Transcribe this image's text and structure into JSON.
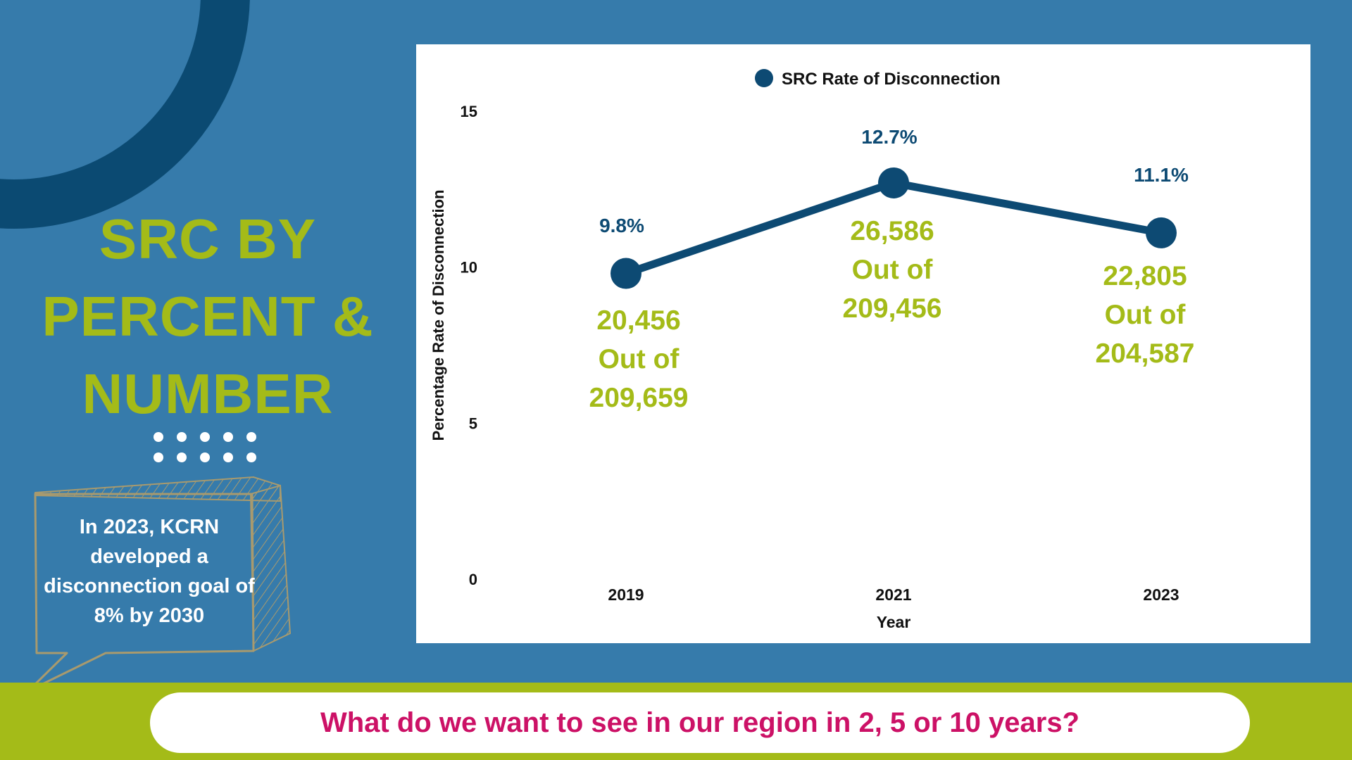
{
  "side": {
    "title_lines": [
      "SRC BY",
      "PERCENT &",
      "NUMBER"
    ],
    "note": "In 2023, KCRN developed a disconnection goal of 8% by 2030"
  },
  "footer": {
    "question": "What do we want to see in our region in 2, 5 or 10 years?"
  },
  "colors": {
    "background": "#367bab",
    "arc": "#0b4a72",
    "accent_green": "#a4bb18",
    "series": "#0d4a73",
    "question_text": "#cc1166",
    "white": "#ffffff"
  },
  "chart_data": {
    "type": "line",
    "title": "",
    "legend": {
      "position": "top-center",
      "label": "SRC Rate of Disconnection"
    },
    "x": [
      "2019",
      "2021",
      "2023"
    ],
    "xlabel": "Year",
    "ylabel": "Percentage Rate of Disconnection",
    "ylim": [
      0,
      15
    ],
    "yticks": [
      0,
      5,
      10,
      15
    ],
    "grid": false,
    "series": [
      {
        "name": "SRC Rate of Disconnection",
        "values": [
          9.8,
          12.7,
          11.1
        ],
        "labels": [
          "9.8%",
          "12.7%",
          "11.1%"
        ]
      }
    ],
    "annotations": [
      {
        "x": "2019",
        "lines": [
          "20,456",
          "Out of",
          "209,659"
        ]
      },
      {
        "x": "2021",
        "lines": [
          "26,586",
          "Out of",
          "209,456"
        ]
      },
      {
        "x": "2023",
        "lines": [
          "22,805",
          "Out of",
          "204,587"
        ]
      }
    ]
  }
}
